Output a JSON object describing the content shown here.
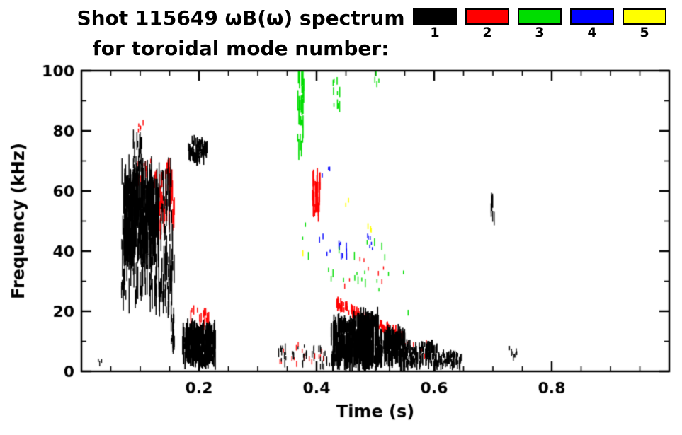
{
  "header": {
    "title_line1": "Shot 115649 ωB(ω) spectrum",
    "title_line2": "for toroidal mode number:"
  },
  "chart_data": {
    "type": "scatter",
    "title": "Shot 115649 ωB(ω) spectrum for toroidal mode number:",
    "xlabel": "Time (s)",
    "ylabel": "Frequency (kHz)",
    "xlim": [
      0,
      1.0
    ],
    "ylim": [
      0,
      100
    ],
    "xtick_values": [
      0.2,
      0.4,
      0.6,
      0.8
    ],
    "xtick_labels": [
      "0.2",
      "0.4",
      "0.6",
      "0.8"
    ],
    "xminor": 0.05,
    "ytick_values": [
      0,
      20,
      40,
      60,
      80,
      100
    ],
    "ytick_labels": [
      "0",
      "20",
      "40",
      "60",
      "80",
      "100"
    ],
    "yminor": 10,
    "grid": false,
    "legend_position": "top-right",
    "series": [
      {
        "name": "1",
        "color": "#000000",
        "clusters": [
          {
            "kind": "blob",
            "t": [
              0.068,
              0.158
            ],
            "f": [
              24,
              68
            ],
            "n": 240,
            "len": [
              2,
              12
            ],
            "w": 1.4
          },
          {
            "kind": "blob",
            "t": [
              0.072,
              0.132
            ],
            "f": [
              40,
              63
            ],
            "n": 260,
            "len": [
              3,
              14
            ],
            "w": 1.6
          },
          {
            "kind": "blob",
            "t": [
              0.088,
              0.103
            ],
            "f": [
              66,
              79
            ],
            "n": 26,
            "len": [
              2,
              6
            ],
            "w": 1.4
          },
          {
            "kind": "blob",
            "t": [
              0.143,
              0.149
            ],
            "f": [
              18,
              40
            ],
            "n": 14,
            "len": [
              2,
              6
            ],
            "w": 1.4
          },
          {
            "kind": "blob",
            "t": [
              0.152,
              0.158
            ],
            "f": [
              7,
              22
            ],
            "n": 18,
            "len": [
              2,
              6
            ],
            "w": 1.4
          },
          {
            "kind": "blob",
            "t": [
              0.182,
              0.214
            ],
            "f": [
              70,
              77
            ],
            "n": 70,
            "len": [
              1,
              4
            ],
            "w": 1.6
          },
          {
            "kind": "blob",
            "t": [
              0.172,
              0.228
            ],
            "f": [
              3.5,
              14.5
            ],
            "n": 260,
            "len": [
              2,
              7
            ],
            "w": 1.8
          },
          {
            "kind": "blob",
            "t": [
              0.332,
              0.425
            ],
            "f": [
              1,
              8.5
            ],
            "n": 40,
            "len": [
              1,
              3
            ],
            "w": 1.3
          },
          {
            "kind": "blob",
            "t": [
              0.425,
              0.462
            ],
            "f": [
              3,
              16
            ],
            "n": 170,
            "len": [
              2,
              8
            ],
            "w": 1.8
          },
          {
            "kind": "blob",
            "t": [
              0.462,
              0.505
            ],
            "f": [
              3,
              17.5
            ],
            "n": 220,
            "len": [
              2,
              9
            ],
            "w": 1.8
          },
          {
            "kind": "blob",
            "t": [
              0.505,
              0.55
            ],
            "f": [
              2.5,
              13
            ],
            "n": 170,
            "len": [
              2,
              6
            ],
            "w": 1.8
          },
          {
            "kind": "blob",
            "t": [
              0.55,
              0.605
            ],
            "f": [
              2,
              9
            ],
            "n": 130,
            "len": [
              1,
              4
            ],
            "w": 1.6
          },
          {
            "kind": "blob",
            "t": [
              0.605,
              0.648
            ],
            "f": [
              1.5,
              6
            ],
            "n": 80,
            "len": [
              1,
              3
            ],
            "w": 1.5
          },
          {
            "kind": "blob",
            "t": [
              0.695,
              0.703
            ],
            "f": [
              50,
              58
            ],
            "n": 10,
            "len": [
              2,
              5
            ],
            "w": 1.3
          },
          {
            "kind": "blob",
            "t": [
              0.728,
              0.742
            ],
            "f": [
              4,
              9
            ],
            "n": 8,
            "len": [
              1,
              3
            ],
            "w": 1.3
          },
          {
            "kind": "blob",
            "t": [
              0.028,
              0.036
            ],
            "f": [
              2,
              4
            ],
            "n": 3,
            "len": [
              1,
              2
            ],
            "w": 1.3
          }
        ]
      },
      {
        "name": "2",
        "color": "#ff0000",
        "clusters": [
          {
            "kind": "blob",
            "t": [
              0.124,
              0.158
            ],
            "f": [
              47,
              68
            ],
            "n": 55,
            "len": [
              2,
              8
            ],
            "w": 1.5
          },
          {
            "kind": "blob",
            "t": [
              0.09,
              0.122
            ],
            "f": [
              61,
              70
            ],
            "n": 18,
            "len": [
              1,
              4
            ],
            "w": 1.4
          },
          {
            "kind": "blob",
            "t": [
              0.096,
              0.106
            ],
            "f": [
              80,
              84
            ],
            "n": 5,
            "len": [
              1,
              2
            ],
            "w": 1.4
          },
          {
            "kind": "blob",
            "t": [
              0.185,
              0.22
            ],
            "f": [
              14,
              21
            ],
            "n": 22,
            "len": [
              1,
              4
            ],
            "w": 1.5
          },
          {
            "kind": "blob",
            "t": [
              0.393,
              0.406
            ],
            "f": [
              52,
              65
            ],
            "n": 40,
            "len": [
              2,
              7
            ],
            "w": 1.7
          },
          {
            "kind": "line",
            "t": [
              0.434,
              0.548
            ],
            "f": [
              22.5,
              11.5
            ],
            "n": 110,
            "jitter": 1.2,
            "len": [
              1,
              3
            ],
            "w": 1.8
          },
          {
            "kind": "blob",
            "t": [
              0.33,
              0.415
            ],
            "f": [
              1.5,
              9
            ],
            "n": 18,
            "len": [
              1,
              2
            ],
            "w": 1.3
          },
          {
            "kind": "blob",
            "t": [
              0.425,
              0.52
            ],
            "f": [
              25,
              38
            ],
            "n": 8,
            "len": [
              1,
              2
            ],
            "w": 1.3
          },
          {
            "kind": "blob",
            "t": [
              0.55,
              0.605
            ],
            "f": [
              5,
              10
            ],
            "n": 10,
            "len": [
              1,
              2
            ],
            "w": 1.3
          }
        ]
      },
      {
        "name": "3",
        "color": "#00dd00",
        "clusters": [
          {
            "kind": "blob",
            "t": [
              0.368,
              0.379
            ],
            "f": [
              73,
              99
            ],
            "n": 32,
            "len": [
              2,
              7
            ],
            "w": 1.6
          },
          {
            "kind": "blob",
            "t": [
              0.428,
              0.44
            ],
            "f": [
              88,
              100
            ],
            "n": 10,
            "len": [
              1,
              4
            ],
            "w": 1.5
          },
          {
            "kind": "blob",
            "t": [
              0.37,
              0.52
            ],
            "f": [
              28,
              50
            ],
            "n": 16,
            "len": [
              1,
              3
            ],
            "w": 1.4
          },
          {
            "kind": "blob",
            "t": [
              0.45,
              0.56
            ],
            "f": [
              18,
              34
            ],
            "n": 8,
            "len": [
              1,
              2
            ],
            "w": 1.4
          },
          {
            "kind": "blob",
            "t": [
              0.494,
              0.506
            ],
            "f": [
              95,
              100
            ],
            "n": 4,
            "len": [
              1,
              2
            ],
            "w": 1.4
          }
        ]
      },
      {
        "name": "4",
        "color": "#0000ff",
        "clusters": [
          {
            "kind": "blob",
            "t": [
              0.438,
              0.452
            ],
            "f": [
              38,
              44
            ],
            "n": 8,
            "len": [
              1,
              3
            ],
            "w": 1.5
          },
          {
            "kind": "blob",
            "t": [
              0.486,
              0.496
            ],
            "f": [
              40,
              46
            ],
            "n": 6,
            "len": [
              1,
              2
            ],
            "w": 1.5
          },
          {
            "kind": "blob",
            "t": [
              0.4,
              0.43
            ],
            "f": [
              38,
              45
            ],
            "n": 4,
            "len": [
              1,
              2
            ],
            "w": 1.4
          },
          {
            "kind": "blob",
            "t": [
              0.405,
              0.425
            ],
            "f": [
              56,
              68
            ],
            "n": 4,
            "len": [
              1,
              2
            ],
            "w": 1.4
          }
        ]
      },
      {
        "name": "5",
        "color": "#ffff00",
        "clusters": [
          {
            "kind": "blob",
            "t": [
              0.487,
              0.493
            ],
            "f": [
              46,
              49
            ],
            "n": 4,
            "len": [
              1,
              2
            ],
            "w": 1.6
          },
          {
            "kind": "blob",
            "t": [
              0.448,
              0.455
            ],
            "f": [
              54,
              57
            ],
            "n": 2,
            "len": [
              1,
              2
            ],
            "w": 1.6
          },
          {
            "kind": "blob",
            "t": [
              0.372,
              0.378
            ],
            "f": [
              36,
              40
            ],
            "n": 2,
            "len": [
              1,
              2
            ],
            "w": 1.6
          }
        ]
      }
    ]
  }
}
